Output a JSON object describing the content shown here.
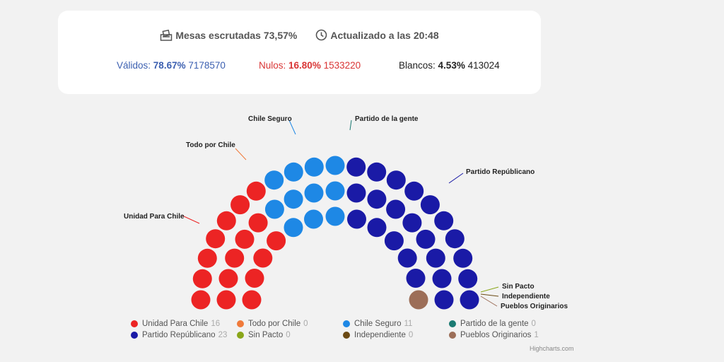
{
  "header": {
    "mesas_label": "Mesas escrutadas 73,57%",
    "updated_label": "Actualizado a las 20:48"
  },
  "stats": {
    "validos": {
      "label": "Válidos:",
      "pct": "78.67%",
      "count": "7178570",
      "color": "#3b5fb0"
    },
    "nulos": {
      "label": "Nulos:",
      "pct": "16.80%",
      "count": "1533220",
      "color": "#d93535"
    },
    "blancos": {
      "label": "Blancos:",
      "pct": "4.53%",
      "count": "413024",
      "color": "#222222"
    }
  },
  "chart_data": {
    "type": "parliament",
    "series": [
      {
        "name": "Unidad Para Chile",
        "seats": 16,
        "color": "#ec2424"
      },
      {
        "name": "Todo por Chile",
        "seats": 0,
        "color": "#f07a3a"
      },
      {
        "name": "Chile Seguro",
        "seats": 11,
        "color": "#1e88e5"
      },
      {
        "name": "Partido de la gente",
        "seats": 0,
        "color": "#1b7a72"
      },
      {
        "name": "Partido Repúblicano",
        "seats": 23,
        "color": "#1a1aa6"
      },
      {
        "name": "Sin Pacto",
        "seats": 0,
        "color": "#8aa61a"
      },
      {
        "name": "Independiente",
        "seats": 0,
        "color": "#6b4a14"
      },
      {
        "name": "Pueblos Originarios",
        "seats": 1,
        "color": "#9c6e58"
      }
    ]
  },
  "credits": "Highcharts.com"
}
